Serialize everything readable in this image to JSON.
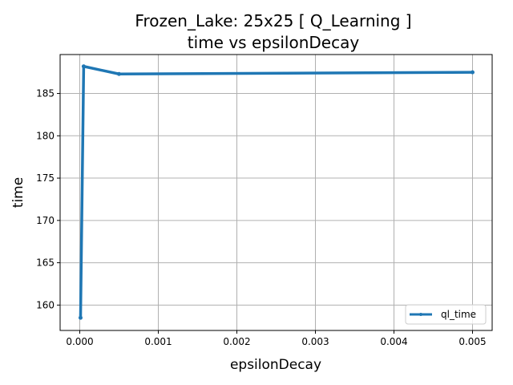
{
  "chart_data": {
    "type": "line",
    "title_line1": "Frozen_Lake: 25x25 [ Q_Learning ]",
    "title_line2": "time vs epsilonDecay",
    "xlabel": "epsilonDecay",
    "ylabel": "time",
    "xlim": [
      -0.00025,
      0.00525
    ],
    "ylim": [
      157.0,
      189.6
    ],
    "xticks": [
      0.0,
      0.001,
      0.002,
      0.003,
      0.004,
      0.005
    ],
    "xtick_labels": [
      "0.000",
      "0.001",
      "0.002",
      "0.003",
      "0.004",
      "0.005"
    ],
    "yticks": [
      160,
      165,
      170,
      175,
      180,
      185
    ],
    "ytick_labels": [
      "160",
      "165",
      "170",
      "175",
      "180",
      "185"
    ],
    "grid": true,
    "legend_position": "lower-right",
    "series": [
      {
        "name": "ql_time",
        "color": "#1f77b4",
        "x": [
          1e-05,
          5e-05,
          0.0005,
          0.005
        ],
        "y": [
          158.5,
          188.2,
          187.3,
          187.5
        ]
      }
    ]
  }
}
